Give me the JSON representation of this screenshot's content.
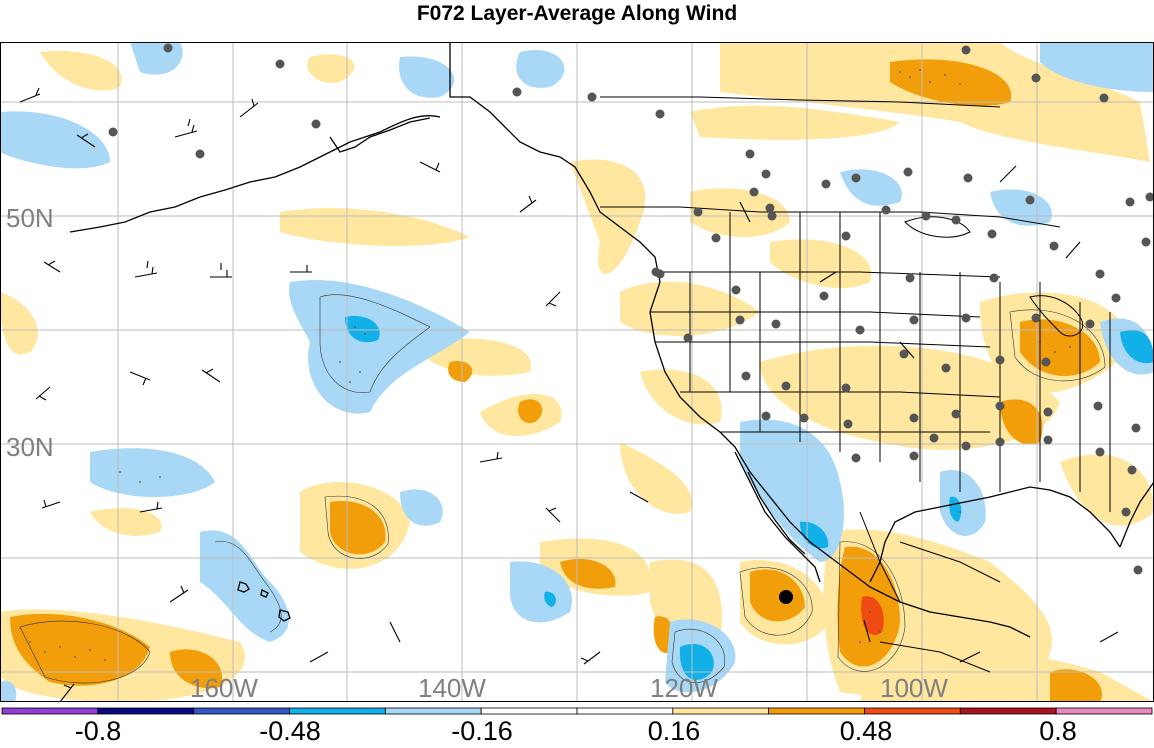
{
  "title": "F072 Layer-Average Along Wind",
  "axes": {
    "lat_labels": [
      {
        "text": "50N",
        "lat": 50
      },
      {
        "text": "30N",
        "lat": 30
      }
    ],
    "lon_labels": [
      {
        "text": "160W",
        "lon": -160
      },
      {
        "text": "140W",
        "lon": -140
      },
      {
        "text": "120W",
        "lon": -120
      },
      {
        "text": "100W",
        "lon": -100
      }
    ]
  },
  "colorbar": {
    "colors": [
      "#8f3fd1",
      "#0a0a80",
      "#3457c4",
      "#11b0e8",
      "#a8d8f5",
      "#ffffff",
      "#ffffff",
      "#ffe7a0",
      "#f29e0a",
      "#f04b12",
      "#a8141f",
      "#e889be"
    ],
    "labels": [
      "-0.8",
      "-0.48",
      "-0.16",
      "0.16",
      "0.48",
      "0.8"
    ]
  },
  "fill_colors": {
    "light_yellow": "#ffe7a0",
    "orange": "#f29e0a",
    "red": "#f04b12",
    "light_blue": "#a8d8f5",
    "blue": "#11b0e8"
  },
  "marker": {
    "lon": -112,
    "lat": 16
  }
}
